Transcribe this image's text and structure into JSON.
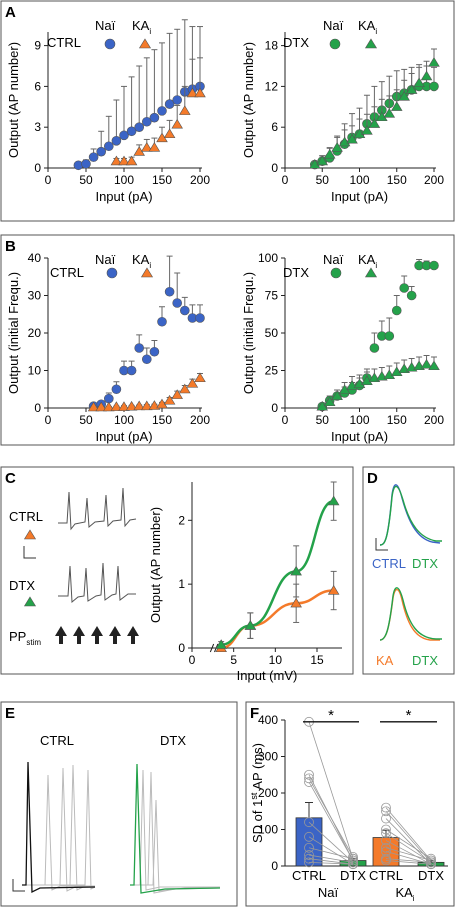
{
  "colors": {
    "ctrl": "#3b64c6",
    "ka": "#f47a2a",
    "dtx": "#24a24a",
    "frame": "#555555",
    "trace": "#555555",
    "trace_light": "#bdbdbd",
    "ctrl_bar": "#3b64c6",
    "ka_bar": "#f47a2a"
  },
  "panels": {
    "A": "A",
    "B": "B",
    "C": "C",
    "D": "D",
    "E": "E",
    "F": "F"
  },
  "legend": {
    "nai": "Naï",
    "ka": "KA",
    "ka_sub": "i",
    "ctrl": "CTRL",
    "dtx": "DTX"
  },
  "c_traces": {
    "ctrl": "CTRL",
    "dtx": "DTX",
    "pp": "PP",
    "pp_sub": "stim",
    "scale": "L"
  },
  "d_labels": {
    "ctrl": "CTRL",
    "dtx": "DTX",
    "ka": "KA",
    "dtx2": "DTX"
  },
  "e_labels": {
    "ctrl": "CTRL",
    "dtx": "DTX",
    "scale": "L"
  },
  "chart_data": [
    {
      "id": "A-left",
      "type": "scatter",
      "xlabel": "Input (pA)",
      "ylabel": "Output (AP number)",
      "xlim": [
        0,
        200
      ],
      "ylim": [
        0,
        10
      ],
      "xticks": [
        0,
        50,
        100,
        150,
        200
      ],
      "yticks": [
        0,
        3,
        6,
        9
      ],
      "series": [
        {
          "name": "Naï",
          "marker": "circle",
          "x": [
            40,
            50,
            60,
            70,
            80,
            90,
            100,
            110,
            120,
            130,
            140,
            150,
            160,
            170,
            180,
            190,
            200
          ],
          "y": [
            0.2,
            0.3,
            0.8,
            1.2,
            1.6,
            2.0,
            2.4,
            2.7,
            3.0,
            3.4,
            3.7,
            4.2,
            4.7,
            5.0,
            5.6,
            5.8,
            6.0
          ],
          "err": [
            0.2,
            0.3,
            0.6,
            1.5,
            2.2,
            3.0,
            3.6,
            4.0,
            4.5,
            4.7,
            5.0,
            5.0,
            5.2,
            5.2,
            5.3,
            4.6,
            4.4
          ]
        },
        {
          "name": "KA",
          "marker": "triangle",
          "x": [
            90,
            100,
            110,
            120,
            130,
            140,
            150,
            160,
            170,
            180,
            190,
            200
          ],
          "y": [
            0.5,
            0.5,
            0.5,
            1.2,
            1.5,
            1.5,
            2.2,
            2.5,
            3.2,
            4.2,
            5.5,
            5.5
          ],
          "err": [
            0.2,
            0.2,
            0.3,
            0.5,
            0.6,
            0.7,
            0.8,
            1.0,
            1.4,
            1.8,
            2.5,
            2.6
          ]
        }
      ]
    },
    {
      "id": "A-right",
      "type": "scatter",
      "xlabel": "Input (pA)",
      "ylabel": "Output (AP number)",
      "xlim": [
        0,
        200
      ],
      "ylim": [
        0,
        20
      ],
      "xticks": [
        0,
        50,
        100,
        150,
        200
      ],
      "yticks": [
        0,
        6,
        12,
        18
      ],
      "series": [
        {
          "name": "Naï",
          "marker": "circle",
          "x": [
            40,
            50,
            60,
            70,
            80,
            90,
            100,
            110,
            120,
            130,
            140,
            150,
            160,
            170,
            180,
            190,
            200
          ],
          "y": [
            0.5,
            1.0,
            1.5,
            2.5,
            3.5,
            4.5,
            5.0,
            6.5,
            7.5,
            8.5,
            9.5,
            10.5,
            11.0,
            11.5,
            12.0,
            12.0,
            12.0
          ],
          "err": [
            0.4,
            0.8,
            1.4,
            2.2,
            3.0,
            3.5,
            3.8,
            4.2,
            4.5,
            4.2,
            4.0,
            3.8,
            3.5,
            3.3,
            3.2,
            3.0,
            2.8
          ]
        },
        {
          "name": "KA",
          "marker": "triangle",
          "x": [
            40,
            50,
            60,
            70,
            80,
            90,
            100,
            110,
            120,
            130,
            140,
            150,
            160,
            170,
            180,
            190,
            200
          ],
          "y": [
            0.5,
            1.0,
            2.0,
            3.0,
            3.8,
            4.2,
            5.0,
            5.5,
            6.5,
            7.5,
            8.0,
            9.0,
            10.5,
            11.5,
            12.5,
            13.5,
            15.5
          ],
          "err": [
            0.5,
            0.8,
            1.0,
            1.5,
            1.8,
            2.0,
            2.2,
            2.4,
            2.5,
            2.6,
            2.6,
            2.5,
            2.4,
            2.4,
            2.3,
            2.2,
            2.0
          ]
        }
      ]
    },
    {
      "id": "B-left",
      "type": "scatter",
      "xlabel": "Input (pA)",
      "ylabel": "Output (initial Frequ.)",
      "xlim": [
        0,
        200
      ],
      "ylim": [
        0,
        40
      ],
      "xticks": [
        0,
        50,
        100,
        150,
        200
      ],
      "yticks": [
        0,
        10,
        20,
        30,
        40
      ],
      "series": [
        {
          "name": "Naï",
          "marker": "circle",
          "x": [
            60,
            70,
            80,
            90,
            100,
            110,
            120,
            130,
            140,
            150,
            160,
            170,
            180,
            190,
            200
          ],
          "y": [
            0.5,
            1.0,
            2.5,
            5.0,
            10.0,
            10.0,
            16.0,
            13.0,
            15.0,
            23.0,
            31.0,
            28.0,
            26.0,
            24.0,
            24.0
          ],
          "err": [
            0.5,
            0.8,
            1.5,
            2.0,
            2.5,
            2.5,
            3.5,
            3.0,
            3.0,
            4.0,
            9.5,
            8.0,
            3.5,
            3.5,
            3.5
          ]
        },
        {
          "name": "KA",
          "marker": "triangle",
          "x": [
            60,
            70,
            80,
            90,
            100,
            110,
            120,
            130,
            140,
            150,
            160,
            170,
            180,
            190,
            200
          ],
          "y": [
            0.2,
            0.2,
            0.2,
            0.3,
            0.3,
            0.4,
            0.5,
            0.5,
            0.6,
            1.0,
            2.0,
            3.5,
            5.0,
            6.5,
            8.0
          ],
          "err": [
            0.2,
            0.2,
            0.2,
            0.2,
            0.3,
            0.3,
            0.3,
            0.4,
            0.4,
            0.5,
            0.8,
            1.0,
            1.0,
            1.2,
            1.2
          ]
        }
      ]
    },
    {
      "id": "B-right",
      "type": "scatter",
      "xlabel": "Input (pA)",
      "ylabel": "Output (initial Frequ.)",
      "xlim": [
        0,
        200
      ],
      "ylim": [
        0,
        100
      ],
      "xticks": [
        0,
        50,
        100,
        150,
        200
      ],
      "yticks": [
        0,
        25,
        50,
        75,
        100
      ],
      "series": [
        {
          "name": "Naï",
          "marker": "circle",
          "x": [
            50,
            60,
            70,
            80,
            90,
            100,
            110,
            120,
            130,
            140,
            150,
            160,
            170,
            180,
            190,
            200
          ],
          "y": [
            1,
            5,
            8,
            10,
            12,
            15,
            20,
            40,
            48,
            48,
            65,
            80,
            75,
            95,
            95,
            95
          ],
          "err": [
            1,
            3,
            4,
            4,
            5,
            5,
            6,
            10,
            10,
            12,
            10,
            8,
            6,
            4,
            3,
            2
          ]
        },
        {
          "name": "KA",
          "marker": "triangle",
          "x": [
            50,
            60,
            70,
            80,
            90,
            100,
            110,
            120,
            130,
            140,
            150,
            160,
            170,
            180,
            190,
            200
          ],
          "y": [
            1,
            4,
            8,
            12,
            15,
            16,
            18,
            20,
            21,
            22,
            24,
            26,
            27,
            28,
            29,
            28
          ],
          "err": [
            1,
            2,
            4,
            5,
            6,
            6,
            6,
            6,
            6,
            6,
            6,
            6,
            6,
            6,
            6,
            6
          ]
        }
      ]
    },
    {
      "id": "C",
      "type": "line",
      "xlabel": "Input (mV)",
      "ylabel": "Output (AP number)",
      "xlim": [
        0,
        18
      ],
      "ylim": [
        0,
        2.6
      ],
      "xticks": [
        0,
        5,
        10,
        15
      ],
      "yticks": [
        0,
        1,
        2
      ],
      "series": [
        {
          "name": "CTRL",
          "marker": "triangle",
          "x": [
            3.5,
            7,
            12.5,
            17
          ],
          "y": [
            0.0,
            0.35,
            0.7,
            0.9
          ],
          "err": [
            0.05,
            0.2,
            0.3,
            0.3
          ]
        },
        {
          "name": "DTX",
          "marker": "triangle",
          "x": [
            3.5,
            7,
            12.5,
            17
          ],
          "y": [
            0.05,
            0.35,
            1.2,
            2.3
          ],
          "err": [
            0.05,
            0.2,
            0.4,
            0.3
          ]
        }
      ]
    },
    {
      "id": "F",
      "type": "bar",
      "ylabel": "SD of 1st AP (ms)",
      "ylabel_parts": [
        "SD of 1",
        "st",
        " AP (ms)"
      ],
      "ylim": [
        0,
        400
      ],
      "yticks": [
        0,
        100,
        200,
        300,
        400
      ],
      "categories": [
        "CTRL",
        "DTX",
        "CTRL",
        "DTX"
      ],
      "group_labels": [
        {
          "label": "Naï"
        },
        {
          "label": "KA",
          "sub": "i"
        }
      ],
      "values": [
        132,
        15,
        78,
        10
      ],
      "err": [
        42,
        5,
        20,
        4
      ],
      "significance": "*",
      "paired_points": [
        [
          [
            395,
            20
          ],
          [
            250,
            15
          ],
          [
            240,
            25
          ],
          [
            230,
            15
          ],
          [
            120,
            10
          ],
          [
            80,
            5
          ],
          [
            50,
            20
          ],
          [
            30,
            10
          ],
          [
            20,
            5
          ],
          [
            10,
            5
          ]
        ],
        [
          [
            160,
            15
          ],
          [
            150,
            10
          ],
          [
            130,
            5
          ],
          [
            100,
            20
          ],
          [
            90,
            10
          ],
          [
            70,
            5
          ],
          [
            50,
            15
          ],
          [
            40,
            5
          ],
          [
            20,
            10
          ],
          [
            15,
            5
          ]
        ]
      ]
    }
  ]
}
